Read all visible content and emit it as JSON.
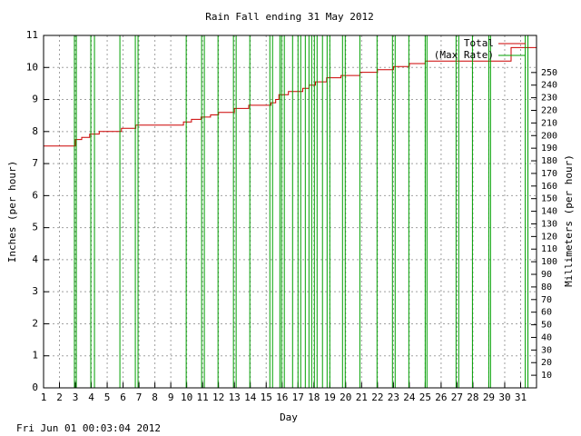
{
  "chart_data": {
    "type": "line",
    "title": "Rain Fall ending 31 May 2012",
    "x_label": "Day",
    "y_label": "Inches (per hour)",
    "y2_label": "Millimeters (per hour)",
    "footer": "Fri Jun 01 00:03:04 2012",
    "xlim": [
      1,
      32
    ],
    "xticks": [
      1,
      2,
      3,
      4,
      5,
      6,
      7,
      8,
      9,
      10,
      11,
      12,
      13,
      14,
      15,
      16,
      17,
      18,
      19,
      20,
      21,
      22,
      23,
      24,
      25,
      26,
      27,
      28,
      29,
      30,
      31
    ],
    "ylim": [
      0,
      11
    ],
    "yticks": [
      0,
      1,
      2,
      3,
      4,
      5,
      6,
      7,
      8,
      9,
      10,
      11
    ],
    "y2lim": [
      0,
      279.4
    ],
    "y2ticks": [
      10,
      20,
      30,
      40,
      50,
      60,
      70,
      80,
      90,
      100,
      110,
      120,
      130,
      140,
      150,
      160,
      170,
      180,
      190,
      200,
      210,
      220,
      230,
      240,
      250
    ],
    "grid": true,
    "legend": "top-right",
    "series": [
      {
        "name": "Total",
        "color": "#cc0000",
        "style": "line",
        "x": [
          1,
          3,
          3,
          3.4,
          3.4,
          3.9,
          3.9,
          4.5,
          4.5,
          5.9,
          5.9,
          6.8,
          6.8,
          9.8,
          9.8,
          10.3,
          10.3,
          10.9,
          10.9,
          11.5,
          11.5,
          12,
          12,
          13,
          13,
          13.9,
          13.9,
          15.3,
          15.3,
          15.6,
          15.6,
          15.8,
          15.8,
          16.4,
          16.4,
          17.3,
          17.3,
          17.7,
          17.7,
          18.1,
          18.1,
          18.8,
          18.8,
          19.7,
          19.7,
          20.9,
          20.9,
          22,
          22,
          23,
          23,
          24,
          24,
          25,
          25,
          30.4,
          30.4,
          32
        ],
        "values": [
          7.55,
          7.55,
          7.75,
          7.75,
          7.82,
          7.82,
          7.92,
          7.92,
          8.0,
          8.0,
          8.1,
          8.1,
          8.2,
          8.2,
          8.3,
          8.3,
          8.38,
          8.38,
          8.45,
          8.45,
          8.52,
          8.52,
          8.6,
          8.6,
          8.72,
          8.72,
          8.82,
          8.82,
          8.9,
          8.9,
          9.0,
          9.0,
          9.15,
          9.15,
          9.25,
          9.25,
          9.35,
          9.35,
          9.45,
          9.45,
          9.55,
          9.55,
          9.68,
          9.68,
          9.75,
          9.75,
          9.85,
          9.85,
          9.93,
          9.93,
          10.03,
          10.03,
          10.12,
          10.12,
          10.2,
          10.2,
          10.62,
          10.62
        ]
      },
      {
        "name": "(Max Rate)",
        "color": "#00a000",
        "style": "impulses",
        "x": [
          2.94,
          3.06,
          3.97,
          4.2,
          5.8,
          6.77,
          6.94,
          9.97,
          10.94,
          11.11,
          11.97,
          12.94,
          13.11,
          13.97,
          15.23,
          15.4,
          15.86,
          15.97,
          16.14,
          16.66,
          17.0,
          17.17,
          17.46,
          17.69,
          17.86,
          18.03,
          18.2,
          18.54,
          18.83,
          19.0,
          19.8,
          19.97,
          20.89,
          21.97,
          22.94,
          23.11,
          23.97,
          25.0,
          25.11,
          26.94,
          27.11,
          27.97,
          29.0,
          29.11,
          31.29,
          31.46
        ],
        "values": [
          11,
          11,
          11,
          11,
          11,
          11,
          11,
          11,
          11,
          11,
          11,
          11,
          11,
          11,
          11,
          11,
          11,
          11,
          11,
          11,
          11,
          11,
          11,
          11,
          11,
          11,
          11,
          11,
          11,
          11,
          11,
          11,
          11,
          11,
          11,
          11,
          11,
          11,
          11,
          11,
          11,
          11,
          11,
          11,
          11,
          11
        ]
      }
    ]
  }
}
